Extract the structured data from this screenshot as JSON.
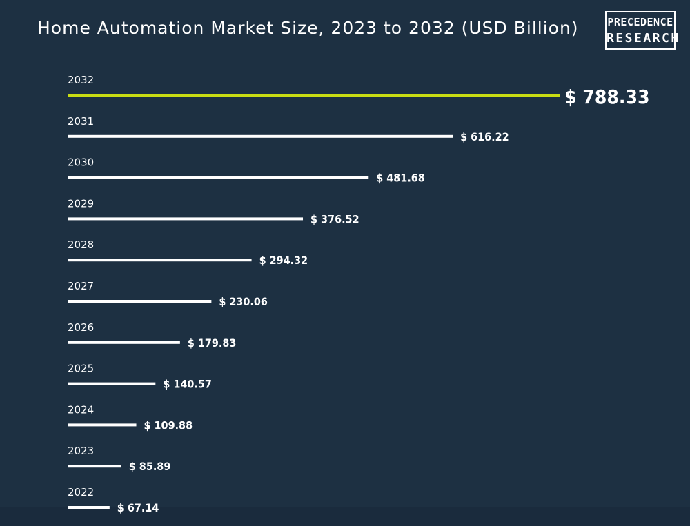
{
  "header": {
    "title": "Home Automation Market Size, 2023 to 2032 (USD Billion)",
    "logo_line1": "PRECEDENCE",
    "logo_line2": "RESEARCH"
  },
  "colors": {
    "background": "#1d3042",
    "bar": "#ffffff",
    "highlight_bar": "#c8dc13",
    "text": "#ffffff"
  },
  "chart_data": {
    "type": "bar",
    "orientation": "horizontal",
    "categories": [
      "2032",
      "2031",
      "2030",
      "2029",
      "2028",
      "2027",
      "2026",
      "2025",
      "2024",
      "2023",
      "2022"
    ],
    "values": [
      788.33,
      616.22,
      481.68,
      376.52,
      294.32,
      230.06,
      179.83,
      140.57,
      109.88,
      85.89,
      67.14
    ],
    "value_labels": [
      "$ 788.33",
      "$ 616.22",
      "$ 481.68",
      "$ 376.52",
      "$ 294.32",
      "$ 230.06",
      "$ 179.83",
      "$ 140.57",
      "$ 109.88",
      "$ 85.89",
      "$ 67.14"
    ],
    "highlight_category": "2032",
    "title": "Home Automation Market Size, 2023 to 2032 (USD Billion)",
    "xlabel": "",
    "ylabel": "",
    "grid": false,
    "legend": "none"
  }
}
